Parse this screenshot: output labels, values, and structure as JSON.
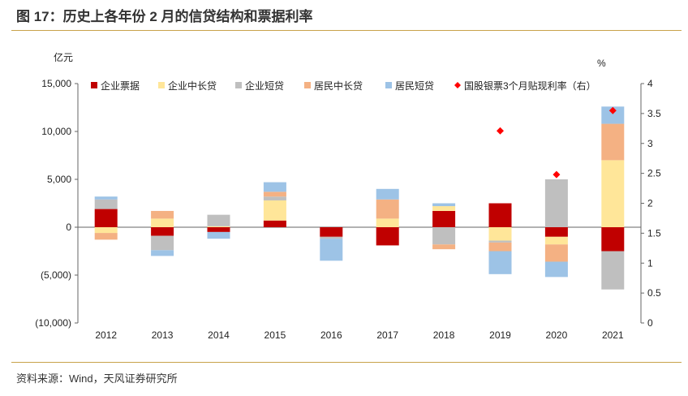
{
  "title": "图 17：历史上各年份 2 月的信贷结构和票据利率",
  "source": "资料来源：Wind，天风证券研究所",
  "chart_data": {
    "type": "bar",
    "stacked": true,
    "categories": [
      "2012",
      "2013",
      "2014",
      "2015",
      "2016",
      "2017",
      "2018",
      "2019",
      "2020",
      "2021"
    ],
    "y_left": {
      "unit": "亿元",
      "range": [
        -10000,
        15000
      ],
      "ticks": [
        15000,
        10000,
        5000,
        0,
        -5000,
        -10000
      ],
      "tick_labels": [
        "15,000",
        "10,000",
        "5,000",
        "0",
        "(5,000)",
        "(10,000)"
      ]
    },
    "y_right": {
      "unit": "%",
      "range": [
        0,
        4
      ],
      "ticks": [
        4,
        3.5,
        3,
        2.5,
        2,
        1.5,
        1,
        0.5,
        0
      ],
      "tick_labels": [
        "4",
        "3.5",
        "3",
        "2.5",
        "2",
        "1.5",
        "1",
        "0.5",
        "0"
      ]
    },
    "legend_position": "top",
    "grid": false,
    "series": [
      {
        "name": "企业票据",
        "color": "#c00000",
        "values": [
          1900,
          -900,
          -500,
          700,
          -1000,
          -1900,
          1700,
          2500,
          -1000,
          -2500
        ]
      },
      {
        "name": "企业中长贷",
        "color": "#ffe699",
        "values": [
          -600,
          900,
          100,
          2100,
          0,
          900,
          500,
          -1400,
          -800,
          7000
        ]
      },
      {
        "name": "企业短贷",
        "color": "#bfbfbf",
        "values": [
          1000,
          -1500,
          1200,
          400,
          -200,
          0,
          -1800,
          -200,
          5000,
          -4000
        ]
      },
      {
        "name": "居民中长贷",
        "color": "#f4b183",
        "values": [
          -700,
          800,
          0,
          500,
          0,
          2000,
          -500,
          -900,
          -1800,
          3800
        ]
      },
      {
        "name": "居民短贷",
        "color": "#9dc3e6",
        "values": [
          300,
          -600,
          -700,
          1000,
          -2300,
          1100,
          300,
          -2400,
          -1600,
          1800
        ]
      }
    ],
    "rate_series": {
      "name": "国股银票3个月贴现利率（右）",
      "color": "#ff0000",
      "axis": "right",
      "values": [
        null,
        null,
        null,
        null,
        null,
        null,
        null,
        3.21,
        2.48,
        3.55
      ]
    }
  }
}
